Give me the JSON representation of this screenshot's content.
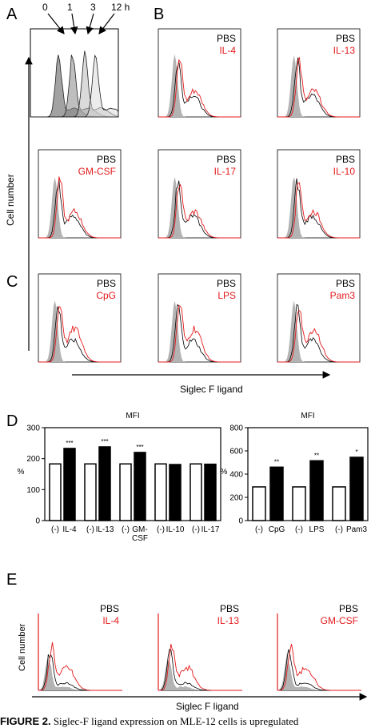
{
  "panels": {
    "A": "A",
    "B": "B",
    "C": "C",
    "D": "D",
    "E": "E"
  },
  "panel_a": {
    "times": [
      "0",
      "1",
      "3",
      "12 h"
    ]
  },
  "hist_rows": [
    [
      {
        "ref": "PBS",
        "stim": "IL-4"
      },
      {
        "ref": "PBS",
        "stim": "IL-13"
      }
    ],
    [
      {
        "ref": "PBS",
        "stim": "GM-CSF"
      },
      {
        "ref": "PBS",
        "stim": "IL-17"
      },
      {
        "ref": "PBS",
        "stim": "IL-10"
      }
    ],
    [
      {
        "ref": "PBS",
        "stim": "CpG"
      },
      {
        "ref": "PBS",
        "stim": "LPS"
      },
      {
        "ref": "PBS",
        "stim": "Pam3"
      }
    ]
  ],
  "axis": {
    "y_label": "Cell number",
    "x_label": "Siglec F ligand"
  },
  "panel_e": {
    "histograms": [
      {
        "ref": "PBS",
        "stim": "IL-4"
      },
      {
        "ref": "PBS",
        "stim": "IL-13"
      },
      {
        "ref": "PBS",
        "stim": "GM-CSF"
      }
    ],
    "y_label": "Cell number",
    "x_label": "Siglec F ligand"
  },
  "colors": {
    "stim": "#e41a1c",
    "control": "#ffffff",
    "treated": "#000000",
    "isotype": "#b3b3b3"
  },
  "chart_data": [
    {
      "type": "bar",
      "title": "MFI",
      "ylabel": "%",
      "ylim": [
        0,
        300
      ],
      "yticks": [
        0,
        100,
        200,
        300
      ],
      "groups": [
        {
          "label": "IL-4",
          "minus": "(-)",
          "control": 183,
          "treated": 233,
          "sig": "***"
        },
        {
          "label": "IL-13",
          "minus": "(-)",
          "control": 183,
          "treated": 238,
          "sig": "***"
        },
        {
          "label": "GM-CSF",
          "minus": "(-)",
          "control": 183,
          "treated": 220,
          "sig": "***"
        },
        {
          "label": "IL-10",
          "minus": "(-)",
          "control": 183,
          "treated": 181,
          "sig": ""
        },
        {
          "label": "IL-17",
          "minus": "(-)",
          "control": 183,
          "treated": 182,
          "sig": ""
        }
      ]
    },
    {
      "type": "bar",
      "title": "MFI",
      "ylabel": "%",
      "ylim": [
        0,
        800
      ],
      "yticks": [
        0,
        200,
        400,
        600,
        800
      ],
      "groups": [
        {
          "label": "CpG",
          "minus": "(-)",
          "control": 290,
          "treated": 460,
          "sig": "**"
        },
        {
          "label": "LPS",
          "minus": "(-)",
          "control": 290,
          "treated": 515,
          "sig": "**"
        },
        {
          "label": "Pam3",
          "minus": "(-)",
          "control": 290,
          "treated": 545,
          "sig": "*"
        }
      ]
    }
  ],
  "caption": {
    "label": "FIGURE 2.",
    "text": "Siglec-F ligand expression on MLE-12 cells is upregulated"
  }
}
